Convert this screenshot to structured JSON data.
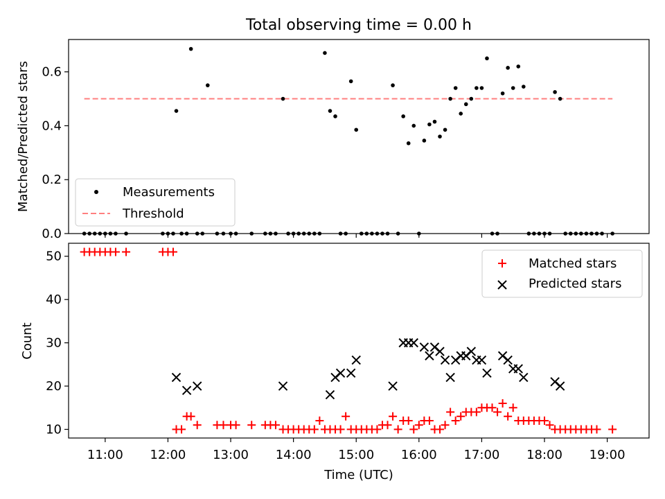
{
  "figure_title": "Total observing time = 0.00 h",
  "chart_data": [
    {
      "type": "scatter",
      "ylabel": "Matched/Predicted stars",
      "xlim": [
        "10:25",
        "19:40"
      ],
      "ylim": [
        0,
        0.72
      ],
      "yticks": [
        0.0,
        0.2,
        0.4,
        0.6
      ],
      "ytick_labels": [
        "0.0",
        "0.2",
        "0.4",
        "0.6"
      ],
      "xticks": [
        "11:00",
        "12:00",
        "13:00",
        "14:00",
        "15:00",
        "16:00",
        "17:00",
        "18:00",
        "19:00"
      ],
      "show_xtick_labels": false,
      "grid": false,
      "legend": {
        "position": "lower-left",
        "entries": [
          "Measurements",
          "Threshold"
        ]
      },
      "threshold": {
        "name": "Threshold",
        "y": 0.5,
        "x_range": [
          "10:40",
          "19:05"
        ],
        "color": "#ff7f7f",
        "style": "dashed"
      },
      "series": [
        {
          "name": "Measurements",
          "color": "#000000",
          "marker": "dot",
          "points": [
            [
              "10:40",
              0
            ],
            [
              "10:45",
              0
            ],
            [
              "10:50",
              0
            ],
            [
              "10:55",
              0
            ],
            [
              "11:00",
              0
            ],
            [
              "11:05",
              0
            ],
            [
              "11:10",
              0
            ],
            [
              "11:20",
              0
            ],
            [
              "11:55",
              0
            ],
            [
              "12:00",
              0
            ],
            [
              "12:05",
              0
            ],
            [
              "12:08",
              0.455
            ],
            [
              "12:13",
              0
            ],
            [
              "12:18",
              0
            ],
            [
              "12:22",
              0.685
            ],
            [
              "12:28",
              0
            ],
            [
              "12:33",
              0
            ],
            [
              "12:38",
              0.55
            ],
            [
              "12:47",
              0
            ],
            [
              "12:53",
              0
            ],
            [
              "13:00",
              0
            ],
            [
              "13:05",
              0
            ],
            [
              "13:20",
              0
            ],
            [
              "13:33",
              0
            ],
            [
              "13:38",
              0
            ],
            [
              "13:43",
              0
            ],
            [
              "13:50",
              0.5
            ],
            [
              "13:55",
              0
            ],
            [
              "14:00",
              0
            ],
            [
              "14:05",
              0
            ],
            [
              "14:10",
              0
            ],
            [
              "14:15",
              0
            ],
            [
              "14:20",
              0
            ],
            [
              "14:25",
              0
            ],
            [
              "14:30",
              0.67
            ],
            [
              "14:35",
              0.455
            ],
            [
              "14:40",
              0.435
            ],
            [
              "14:45",
              0
            ],
            [
              "14:50",
              0
            ],
            [
              "14:55",
              0.565
            ],
            [
              "15:00",
              0.385
            ],
            [
              "15:05",
              0
            ],
            [
              "15:10",
              0
            ],
            [
              "15:15",
              0
            ],
            [
              "15:20",
              0
            ],
            [
              "15:25",
              0
            ],
            [
              "15:30",
              0
            ],
            [
              "15:35",
              0.55
            ],
            [
              "15:40",
              0
            ],
            [
              "15:45",
              0.435
            ],
            [
              "15:50",
              0.335
            ],
            [
              "15:55",
              0.4
            ],
            [
              "16:00",
              0
            ],
            [
              "16:05",
              0.345
            ],
            [
              "16:10",
              0.405
            ],
            [
              "16:15",
              0.415
            ],
            [
              "16:20",
              0.36
            ],
            [
              "16:25",
              0.385
            ],
            [
              "16:30",
              0.5
            ],
            [
              "16:35",
              0.54
            ],
            [
              "16:40",
              0.445
            ],
            [
              "16:45",
              0.48
            ],
            [
              "16:50",
              0.5
            ],
            [
              "16:55",
              0.54
            ],
            [
              "17:00",
              0.54
            ],
            [
              "17:05",
              0.65
            ],
            [
              "17:10",
              0
            ],
            [
              "17:15",
              0
            ],
            [
              "17:20",
              0.52
            ],
            [
              "17:25",
              0.615
            ],
            [
              "17:30",
              0.54
            ],
            [
              "17:35",
              0.62
            ],
            [
              "17:40",
              0.545
            ],
            [
              "17:45",
              0
            ],
            [
              "17:50",
              0
            ],
            [
              "17:55",
              0
            ],
            [
              "18:00",
              0
            ],
            [
              "18:05",
              0
            ],
            [
              "18:10",
              0.525
            ],
            [
              "18:15",
              0.5
            ],
            [
              "18:20",
              0
            ],
            [
              "18:25",
              0
            ],
            [
              "18:30",
              0
            ],
            [
              "18:35",
              0
            ],
            [
              "18:40",
              0
            ],
            [
              "18:45",
              0
            ],
            [
              "18:50",
              0
            ],
            [
              "18:55",
              0
            ],
            [
              "19:05",
              0
            ]
          ]
        }
      ]
    },
    {
      "type": "scatter",
      "xlabel": "Time (UTC)",
      "ylabel": "Count",
      "xlim": [
        "10:25",
        "19:40"
      ],
      "ylim": [
        8,
        53
      ],
      "yticks": [
        10,
        20,
        30,
        40,
        50
      ],
      "ytick_labels": [
        "10",
        "20",
        "30",
        "40",
        "50"
      ],
      "xticks": [
        "11:00",
        "12:00",
        "13:00",
        "14:00",
        "15:00",
        "16:00",
        "17:00",
        "18:00",
        "19:00"
      ],
      "xtick_labels": [
        "11:00",
        "12:00",
        "13:00",
        "14:00",
        "15:00",
        "16:00",
        "17:00",
        "18:00",
        "19:00"
      ],
      "grid": false,
      "legend": {
        "position": "top-right",
        "entries": [
          "Matched stars",
          "Predicted stars"
        ]
      },
      "series": [
        {
          "name": "Matched stars",
          "color": "#ff0000",
          "marker": "plus",
          "points": [
            [
              "10:40",
              51
            ],
            [
              "10:45",
              51
            ],
            [
              "10:50",
              51
            ],
            [
              "10:55",
              51
            ],
            [
              "11:00",
              51
            ],
            [
              "11:05",
              51
            ],
            [
              "11:10",
              51
            ],
            [
              "11:20",
              51
            ],
            [
              "11:55",
              51
            ],
            [
              "12:00",
              51
            ],
            [
              "12:05",
              51
            ],
            [
              "12:08",
              10
            ],
            [
              "12:13",
              10
            ],
            [
              "12:18",
              13
            ],
            [
              "12:22",
              13
            ],
            [
              "12:28",
              11
            ],
            [
              "12:47",
              11
            ],
            [
              "12:53",
              11
            ],
            [
              "13:00",
              11
            ],
            [
              "13:05",
              11
            ],
            [
              "13:20",
              11
            ],
            [
              "13:33",
              11
            ],
            [
              "13:38",
              11
            ],
            [
              "13:43",
              11
            ],
            [
              "13:50",
              10
            ],
            [
              "13:55",
              10
            ],
            [
              "14:00",
              10
            ],
            [
              "14:05",
              10
            ],
            [
              "14:10",
              10
            ],
            [
              "14:15",
              10
            ],
            [
              "14:20",
              10
            ],
            [
              "14:25",
              12
            ],
            [
              "14:30",
              10
            ],
            [
              "14:35",
              10
            ],
            [
              "14:40",
              10
            ],
            [
              "14:45",
              10
            ],
            [
              "14:50",
              13
            ],
            [
              "14:55",
              10
            ],
            [
              "15:00",
              10
            ],
            [
              "15:05",
              10
            ],
            [
              "15:10",
              10
            ],
            [
              "15:15",
              10
            ],
            [
              "15:20",
              10
            ],
            [
              "15:25",
              11
            ],
            [
              "15:30",
              11
            ],
            [
              "15:35",
              13
            ],
            [
              "15:40",
              10
            ],
            [
              "15:45",
              12
            ],
            [
              "15:50",
              12
            ],
            [
              "15:55",
              10
            ],
            [
              "16:00",
              11
            ],
            [
              "16:05",
              12
            ],
            [
              "16:10",
              12
            ],
            [
              "16:15",
              10
            ],
            [
              "16:20",
              10
            ],
            [
              "16:25",
              11
            ],
            [
              "16:30",
              14
            ],
            [
              "16:35",
              12
            ],
            [
              "16:40",
              13
            ],
            [
              "16:45",
              14
            ],
            [
              "16:50",
              14
            ],
            [
              "16:55",
              14
            ],
            [
              "17:00",
              15
            ],
            [
              "17:05",
              15
            ],
            [
              "17:10",
              15
            ],
            [
              "17:15",
              14
            ],
            [
              "17:20",
              16
            ],
            [
              "17:25",
              13
            ],
            [
              "17:30",
              15
            ],
            [
              "17:35",
              12
            ],
            [
              "17:40",
              12
            ],
            [
              "17:45",
              12
            ],
            [
              "17:50",
              12
            ],
            [
              "17:55",
              12
            ],
            [
              "18:00",
              12
            ],
            [
              "18:05",
              11
            ],
            [
              "18:10",
              10
            ],
            [
              "18:15",
              10
            ],
            [
              "18:20",
              10
            ],
            [
              "18:25",
              10
            ],
            [
              "18:30",
              10
            ],
            [
              "18:35",
              10
            ],
            [
              "18:40",
              10
            ],
            [
              "18:45",
              10
            ],
            [
              "18:50",
              10
            ],
            [
              "19:05",
              10
            ]
          ]
        },
        {
          "name": "Predicted stars",
          "color": "#000000",
          "marker": "x",
          "points": [
            [
              "12:08",
              22
            ],
            [
              "12:18",
              19
            ],
            [
              "12:28",
              20
            ],
            [
              "13:50",
              20
            ],
            [
              "14:35",
              18
            ],
            [
              "14:40",
              22
            ],
            [
              "14:45",
              23
            ],
            [
              "14:55",
              23
            ],
            [
              "15:00",
              26
            ],
            [
              "15:35",
              20
            ],
            [
              "15:45",
              30
            ],
            [
              "15:50",
              30
            ],
            [
              "15:55",
              30
            ],
            [
              "16:05",
              29
            ],
            [
              "16:10",
              27
            ],
            [
              "16:15",
              29
            ],
            [
              "16:20",
              28
            ],
            [
              "16:25",
              26
            ],
            [
              "16:30",
              22
            ],
            [
              "16:35",
              26
            ],
            [
              "16:40",
              27
            ],
            [
              "16:45",
              27
            ],
            [
              "16:50",
              28
            ],
            [
              "16:55",
              26
            ],
            [
              "17:00",
              26
            ],
            [
              "17:05",
              23
            ],
            [
              "17:20",
              27
            ],
            [
              "17:25",
              26
            ],
            [
              "17:30",
              24
            ],
            [
              "17:35",
              24
            ],
            [
              "17:40",
              22
            ],
            [
              "18:10",
              21
            ],
            [
              "18:15",
              20
            ]
          ]
        }
      ]
    }
  ]
}
